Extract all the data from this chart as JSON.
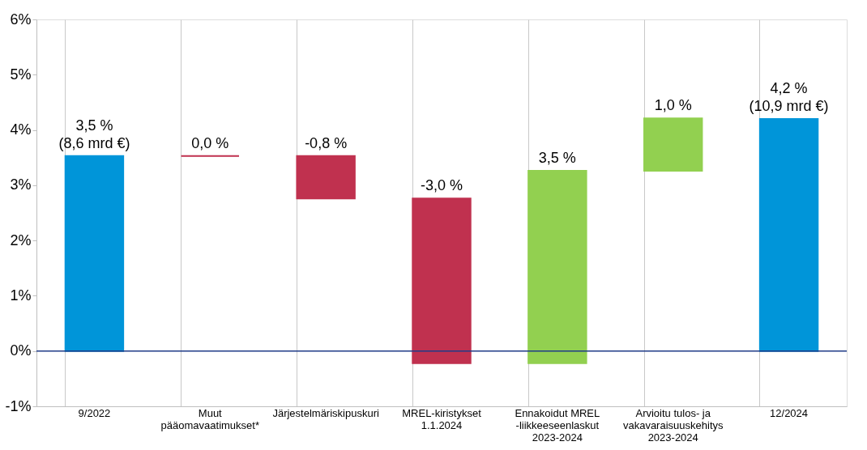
{
  "chart_data": {
    "type": "bar",
    "categories": [
      "9/2022",
      "Muut\npääomavaatimukset*",
      "Järjestelmäriskipuskuri",
      "MREL-kiristykset\n1.1.2024",
      "Ennakoidut MREL\n-liikkeeseenlaskut\n2023-2024",
      "Arvioitu tulos- ja\nvakavaraisuuskehitys\n2023-2024",
      "12/2024"
    ],
    "values": [
      3.53,
      0.0,
      -0.77,
      -2.98,
      3.48,
      0.95,
      4.2
    ],
    "base": [
      0,
      3.53,
      3.53,
      2.76,
      -0.22,
      3.26,
      0
    ],
    "colors": [
      "#0095d9",
      "#c0314f",
      "#c0314f",
      "#c0314f",
      "#92d050",
      "#92d050",
      "#0095d9"
    ],
    "value_labels": [
      "3,5 %\n(8,6 mrd €)",
      "0,0 %",
      "-0,8 %",
      "-3,0 %",
      "3,5 %",
      "1,0 %",
      "4,2 %\n(10,9 mrd €)"
    ],
    "ylim": [
      -1,
      6
    ],
    "yticks": [
      {
        "value": -1,
        "label": "-1%"
      },
      {
        "value": 0,
        "label": "0%"
      },
      {
        "value": 1,
        "label": "1%"
      },
      {
        "value": 2,
        "label": "2%"
      },
      {
        "value": 3,
        "label": "3%"
      },
      {
        "value": 4,
        "label": "4%"
      },
      {
        "value": 5,
        "label": "5%"
      },
      {
        "value": 6,
        "label": "6%"
      }
    ],
    "ref_lines": [
      {
        "axis": "y",
        "value": 0,
        "label": null,
        "color": "#1f3b87"
      }
    ],
    "grid": "x"
  }
}
